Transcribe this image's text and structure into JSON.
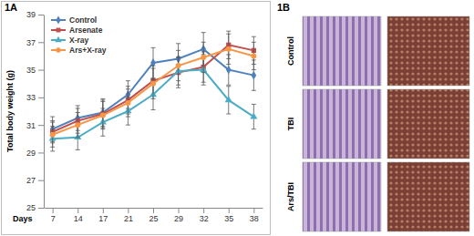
{
  "chart_data": {
    "type": "line",
    "title": "1A",
    "x_label": "Days",
    "y_label": "Total body weight (g)",
    "categories": [
      "7",
      "14",
      "17",
      "21",
      "25",
      "29",
      "32",
      "35",
      "38"
    ],
    "ylim": [
      25,
      39
    ],
    "yticks": [
      25,
      27,
      29,
      31,
      33,
      35,
      37,
      39
    ],
    "grid": false,
    "legend": "upper left",
    "series": [
      {
        "name": "Control",
        "color": "#4f81bd",
        "marker": "diamond",
        "line_style": "solid",
        "values": [
          30.7,
          31.5,
          31.9,
          33.2,
          35.5,
          35.8,
          36.5,
          35.0,
          34.6
        ],
        "errors": [
          0.9,
          0.9,
          1.0,
          1.0,
          1.1,
          1.1,
          1.2,
          1.1,
          1.1
        ]
      },
      {
        "name": "Arsenate",
        "color": "#c0504d",
        "marker": "square",
        "line_style": "solid",
        "values": [
          30.5,
          31.3,
          31.8,
          32.8,
          34.2,
          34.8,
          35.2,
          36.8,
          36.4
        ],
        "errors": [
          0.8,
          0.9,
          1.0,
          1.0,
          1.1,
          1.1,
          1.1,
          1.0,
          1.0
        ]
      },
      {
        "name": "X-ray",
        "color": "#4bacc6",
        "marker": "triangle",
        "line_style": "solid",
        "values": [
          30.0,
          30.1,
          31.2,
          32.0,
          33.2,
          34.9,
          35.0,
          32.8,
          31.6
        ],
        "errors": [
          0.9,
          0.9,
          1.0,
          1.0,
          1.1,
          1.0,
          1.1,
          1.0,
          0.9
        ]
      },
      {
        "name": "Ars+X-ray",
        "color": "#f79646",
        "marker": "circle",
        "line_style": "solid",
        "values": [
          30.3,
          31.0,
          31.7,
          32.6,
          34.0,
          35.3,
          35.9,
          36.5,
          36.0
        ],
        "errors": [
          0.9,
          0.9,
          1.0,
          1.0,
          1.1,
          1.1,
          1.1,
          1.1,
          1.0
        ]
      }
    ]
  },
  "image_panel": {
    "title": "1B",
    "rows": [
      "Control",
      "TBI",
      "Ars/TBI"
    ]
  }
}
